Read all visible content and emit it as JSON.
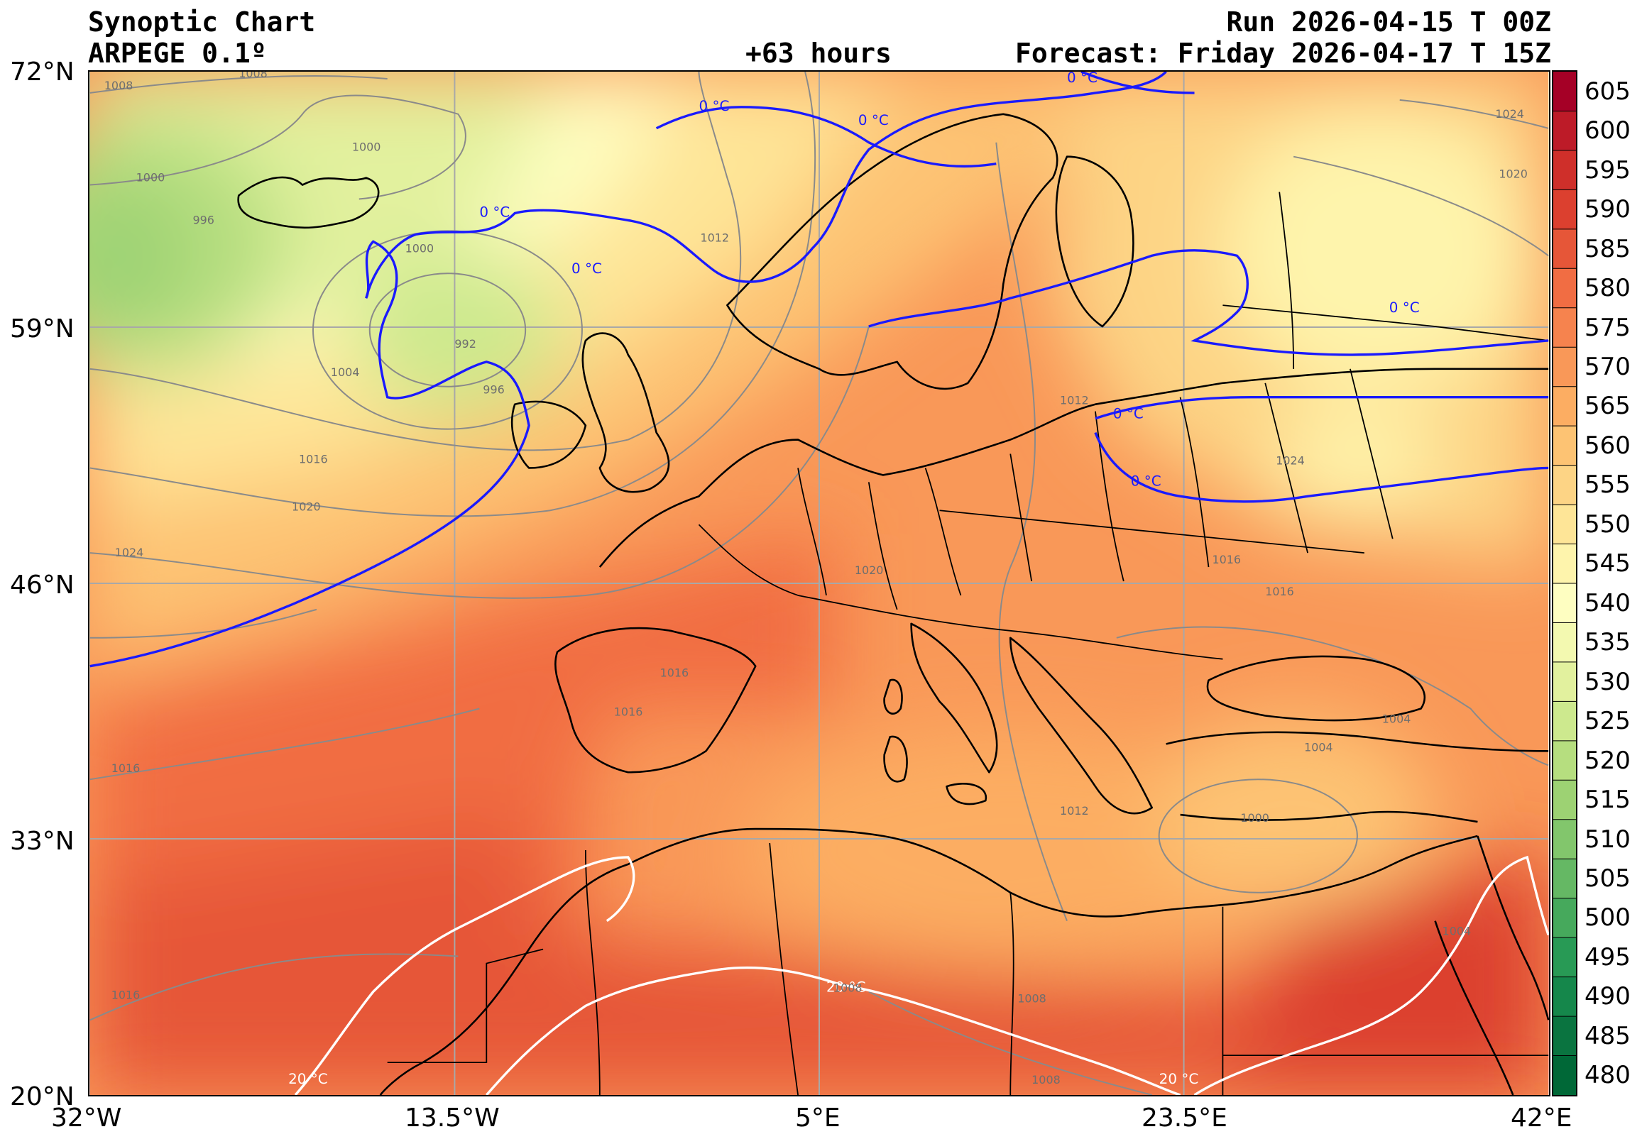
{
  "header": {
    "title": "Synoptic Chart",
    "model": "ARPEGE 0.1º",
    "lead_time": "+63 hours",
    "run": "Run 2026-04-15 T 00Z",
    "forecast": "Forecast: Friday 2026-04-17 T 15Z"
  },
  "axes": {
    "lat_labels": [
      "72°N",
      "59°N",
      "46°N",
      "33°N",
      "20°N"
    ],
    "lon_labels": [
      "32°W",
      "13.5°W",
      "5°E",
      "23.5°E",
      "42°E"
    ]
  },
  "colorbar": {
    "levels": [
      "605",
      "600",
      "595",
      "590",
      "585",
      "580",
      "575",
      "570",
      "565",
      "560",
      "555",
      "550",
      "545",
      "540",
      "535",
      "530",
      "525",
      "520",
      "515",
      "510",
      "505",
      "500",
      "495",
      "490",
      "485",
      "480"
    ],
    "colors": [
      "#a50026",
      "#bd1b28",
      "#cf2f2a",
      "#dc402f",
      "#e65638",
      "#f16d43",
      "#f6834e",
      "#f99858",
      "#fcad62",
      "#fdc373",
      "#fdd485",
      "#fee597",
      "#fef4ac",
      "#fefec1",
      "#f3f9b0",
      "#e2f19e",
      "#cde98e",
      "#b6de7f",
      "#9dd273",
      "#82c66c",
      "#65b864",
      "#46a95c",
      "#289a55",
      "#15874b",
      "#0a7440",
      "#006837"
    ]
  },
  "contours": {
    "isotherm_0": "0 °C",
    "isotherm_20": "20 °C",
    "pressure_labels": [
      "1008",
      "1008",
      "1000",
      "1000",
      "996",
      "1000",
      "992",
      "996",
      "1004",
      "1016",
      "1020",
      "1024",
      "1016",
      "1012",
      "1020",
      "1016",
      "1016",
      "1016",
      "1008",
      "1016",
      "1024",
      "1020",
      "1012",
      "1024",
      "1016",
      "1004",
      "1004",
      "1000",
      "1012",
      "1008",
      "1004",
      "1008"
    ]
  }
}
